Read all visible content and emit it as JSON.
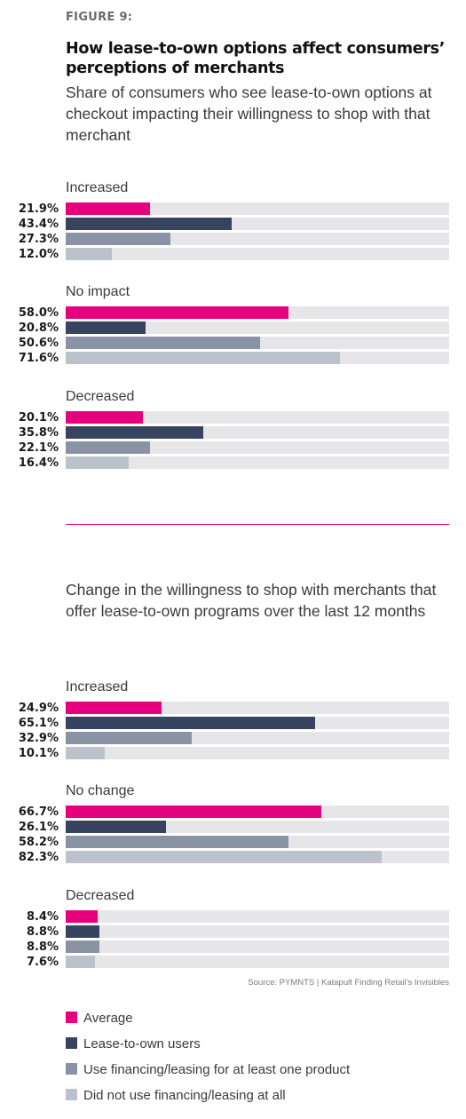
{
  "figure_label": "FIGURE 9:",
  "chart_data": [
    {
      "type": "bar",
      "orientation": "horizontal",
      "title": "How lease-to-own options affect consumers’ perceptions of merchants",
      "subtitle": "Share of consumers who see lease-to-own options at checkout impacting their willingness to shop with that merchant",
      "xlim": [
        0,
        100
      ],
      "unit": "%",
      "groups": [
        {
          "label": "Increased",
          "values": [
            "21.9%",
            "43.4%",
            "27.3%",
            "12.0%"
          ],
          "nums": [
            21.9,
            43.4,
            27.3,
            12.0
          ]
        },
        {
          "label": "No impact",
          "values": [
            "58.0%",
            "20.8%",
            "50.6%",
            "71.6%"
          ],
          "nums": [
            58.0,
            20.8,
            50.6,
            71.6
          ]
        },
        {
          "label": "Decreased",
          "values": [
            "20.1%",
            "35.8%",
            "22.1%",
            "16.4%"
          ],
          "nums": [
            20.1,
            35.8,
            22.1,
            16.4
          ]
        }
      ]
    },
    {
      "type": "bar",
      "orientation": "horizontal",
      "subtitle": "Change in the willingness to shop with merchants that offer lease-to-own programs over the last 12 months",
      "xlim": [
        0,
        100
      ],
      "unit": "%",
      "groups": [
        {
          "label": "Increased",
          "values": [
            "24.9%",
            "65.1%",
            "32.9%",
            "10.1%"
          ],
          "nums": [
            24.9,
            65.1,
            32.9,
            10.1
          ]
        },
        {
          "label": "No change",
          "values": [
            "66.7%",
            "26.1%",
            "58.2%",
            "82.3%"
          ],
          "nums": [
            66.7,
            26.1,
            58.2,
            82.3
          ]
        },
        {
          "label": "Decreased",
          "values": [
            "8.4%",
            "8.8%",
            "8.8%",
            "7.6%"
          ],
          "nums": [
            8.4,
            8.8,
            8.8,
            7.6
          ]
        }
      ]
    }
  ],
  "series": [
    {
      "name": "Average",
      "color": "#e6007e"
    },
    {
      "name": "Lease-to-own users",
      "color": "#37435f"
    },
    {
      "name": "Use financing/leasing for at least one product",
      "color": "#8a93a3"
    },
    {
      "name": "Did not use financing/leasing at all",
      "color": "#bcc2cb"
    }
  ],
  "track_color": "#e6e6e8",
  "source": "Source: PYMNTS | Katapult    Finding Retail’s Invisibles"
}
